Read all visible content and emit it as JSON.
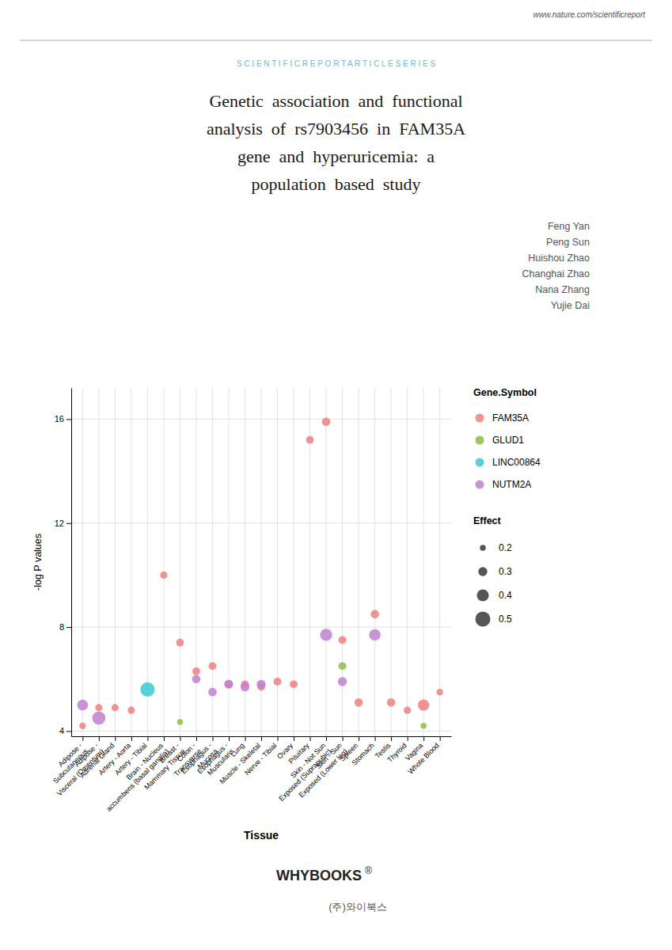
{
  "page": {
    "header_url": "www.nature.com/scientificreport",
    "header_series": "S C I E N T I F I C R E P O R T A R T I C L E S E R I E S",
    "title_lines": [
      "Genetic  association  and  functional",
      "analysis  of  rs7903456  in  FAM35A",
      "gene  and  hyperuricemia:  a",
      "population  based  study"
    ],
    "authors": [
      "Feng Yan",
      "Peng Sun",
      "Huishou Zhao",
      "Changhai Zhao",
      "Nana Zhang",
      "Yujie Dai"
    ],
    "brand": "WHYBOOKS",
    "brand_mark": "®",
    "brand_sub": "(주)와이북스"
  },
  "chart_data": {
    "type": "scatter",
    "marker": "circle",
    "xlabel": "Tissue",
    "ylabel": "-log P values",
    "ylim": [
      3.8,
      17.2
    ],
    "yticks": [
      4,
      8,
      12,
      16
    ],
    "grid": true,
    "legend": "right",
    "legend_title": "Gene.Symbol",
    "categories": [
      "Adipose -\nSubcutaneous",
      "Adipose -\nVisceral (Omentum)",
      "Adrenal Gland",
      "Artery - Aorta",
      "Artery - Tibial",
      "Brain - Nucleus\naccumbens (basal ganglia)",
      "Breast -\nMammary Tissue",
      "Colon -\nTransverse",
      "Esophagus -\nMucosa",
      "Esophagus -\nMuscularis",
      "Lung",
      "Muscle - Skeletal",
      "Nerve - Tibial",
      "Ovary",
      "Pituitary",
      "Skin - Not Sun\nExposed (Suprapubic)",
      "Skin - Sun\nExposed (Lower leg)",
      "Spleen",
      "Stomach",
      "Testis",
      "Thyroid",
      "Vagina",
      "Whole Blood"
    ],
    "series": [
      {
        "name": "FAM35A",
        "color": "#f08080",
        "x": [
          "Adipose -\nSubcutaneous",
          "Adipose -\nVisceral (Omentum)",
          "Adrenal Gland",
          "Artery - Aorta",
          "Brain - Nucleus\naccumbens (basal ganglia)",
          "Breast -\nMammary Tissue",
          "Colon -\nTransverse",
          "Esophagus -\nMucosa",
          "Esophagus -\nMuscularis",
          "Lung",
          "Muscle - Skeletal",
          "Nerve - Tibial",
          "Ovary",
          "Pituitary",
          "Skin - Not Sun\nExposed (Suprapubic)",
          "Skin - Sun\nExposed (Lower leg)",
          "Spleen",
          "Stomach",
          "Testis",
          "Thyroid",
          "Vagina",
          "Whole Blood"
        ],
        "values": [
          4.2,
          4.9,
          4.9,
          4.8,
          10.0,
          7.4,
          6.3,
          6.5,
          5.8,
          5.8,
          5.7,
          5.9,
          5.8,
          15.2,
          15.9,
          7.5,
          5.1,
          8.5,
          5.1,
          4.8,
          5.0,
          5.5
        ],
        "effect": [
          0.22,
          0.24,
          0.24,
          0.24,
          0.24,
          0.26,
          0.26,
          0.26,
          0.26,
          0.26,
          0.26,
          0.26,
          0.26,
          0.26,
          0.28,
          0.26,
          0.28,
          0.28,
          0.28,
          0.24,
          0.38,
          0.22
        ]
      },
      {
        "name": "GLUD1",
        "color": "#8fbc45",
        "x": [
          "Breast -\nMammary Tissue",
          "Skin - Sun\nExposed (Lower leg)",
          "Vagina"
        ],
        "values": [
          4.35,
          6.5,
          4.2
        ],
        "effect": [
          0.2,
          0.26,
          0.2
        ]
      },
      {
        "name": "LINC00864",
        "color": "#40c8d0",
        "x": [
          "Artery - Tibial"
        ],
        "values": [
          5.6
        ],
        "effect": [
          0.48
        ]
      },
      {
        "name": "NUTM2A",
        "color": "#c080d0",
        "x": [
          "Adipose -\nSubcutaneous",
          "Adipose -\nVisceral (Omentum)",
          "Colon -\nTransverse",
          "Esophagus -\nMucosa",
          "Esophagus -\nMuscularis",
          "Lung",
          "Muscle - Skeletal",
          "Skin - Not Sun\nExposed (Suprapubic)",
          "Skin - Sun\nExposed (Lower leg)",
          "Stomach"
        ],
        "values": [
          5.0,
          4.5,
          6.0,
          5.5,
          5.8,
          5.7,
          5.8,
          7.7,
          5.9,
          7.7
        ],
        "effect": [
          0.36,
          0.44,
          0.28,
          0.28,
          0.3,
          0.3,
          0.3,
          0.4,
          0.3,
          0.38
        ]
      }
    ],
    "effect_legend": {
      "title": "Effect",
      "values": [
        0.2,
        0.3,
        0.4,
        0.5
      ]
    }
  }
}
